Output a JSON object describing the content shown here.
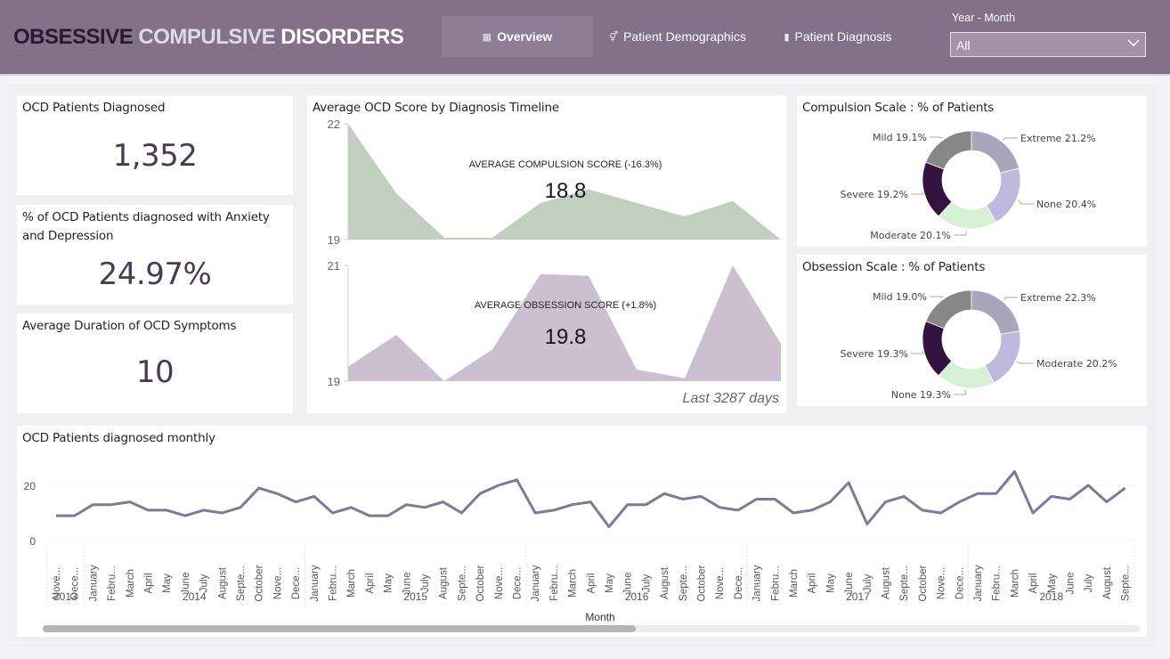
{
  "header": {
    "title_part1": "OBSESSIVE",
    "title_part2": "COMPULSIVE",
    "title_part3": "DISORDERS",
    "nav": [
      {
        "label": "Overview",
        "icon": "table-icon",
        "active": true
      },
      {
        "label": "Patient Demographics",
        "icon": "gender-icon",
        "active": false
      },
      {
        "label": "Patient Diagnosis",
        "icon": "test-tube-icon",
        "active": false
      }
    ],
    "filter": {
      "label": "Year - Month",
      "value": "All"
    }
  },
  "kpis": [
    {
      "title": "OCD Patients Diagnosed",
      "value": "1,352"
    },
    {
      "title": "% of OCD Patients diagnosed with Anxiety and Depression",
      "value": "24.97%"
    },
    {
      "title": "Average Duration of OCD Symptoms",
      "value": "10"
    }
  ],
  "timeline": {
    "title": "Average OCD Score by Diagnosis Timeline",
    "footer": "Last 3287 days",
    "compulsion": {
      "label": "AVERAGE COMPULSION SCORE (-16.3%)",
      "value": "18.8"
    },
    "obsession": {
      "label": "AVERAGE OBSESSION SCORE (+1.8%)",
      "value": "19.8"
    }
  },
  "donuts": {
    "compulsion_title": "Compulsion Scale : % of Patients",
    "obsession_title": "Obsession Scale : % of Patients"
  },
  "monthly": {
    "title": "OCD Patients diagnosed monthly",
    "xlabel": "Month",
    "scroll_position": 0.54
  },
  "colors": {
    "header_bg": "#837089",
    "compulsion_area": "#c1cfbe",
    "obsession_area": "#cbc0cf",
    "line": "#7a7b9a",
    "extreme": "#a9a6bb",
    "none_or_moderate": "#bfb9dd",
    "light_green": "#d5f0d3",
    "severe": "#351340",
    "mild": "#878787"
  },
  "chart_data": [
    {
      "type": "area",
      "title": "Average Compulsion Score",
      "ylim": [
        19,
        22
      ],
      "yticks": [
        "22",
        "19"
      ],
      "values": [
        22.0,
        20.2,
        19.05,
        19.05,
        19.95,
        20.3,
        19.95,
        19.6,
        20.0,
        19.0
      ]
    },
    {
      "type": "area",
      "title": "Average Obsession Score",
      "ylim": [
        19,
        21
      ],
      "yticks": [
        "21",
        "19"
      ],
      "values": [
        19.25,
        19.8,
        19.0,
        19.55,
        20.85,
        20.82,
        19.2,
        19.05,
        21.0,
        19.65
      ]
    },
    {
      "type": "pie",
      "title": "Compulsion Scale : % of Patients",
      "slices": [
        {
          "label": "Extreme",
          "value": 21.2,
          "text": "Extreme 21.2%",
          "color": "#a9a6bb"
        },
        {
          "label": "None",
          "value": 20.4,
          "text": "None 20.4%",
          "color": "#bfb9dd"
        },
        {
          "label": "Moderate",
          "value": 20.1,
          "text": "Moderate 20.1%",
          "color": "#d5f0d3"
        },
        {
          "label": "Severe",
          "value": 19.2,
          "text": "Severe 19.2%",
          "color": "#351340"
        },
        {
          "label": "Mild",
          "value": 19.1,
          "text": "Mild 19.1%",
          "color": "#878787"
        }
      ]
    },
    {
      "type": "pie",
      "title": "Obsession Scale : % of Patients",
      "slices": [
        {
          "label": "Extreme",
          "value": 22.3,
          "text": "Extreme 22.3%",
          "color": "#a9a6bb"
        },
        {
          "label": "Moderate",
          "value": 20.2,
          "text": "Moderate 20.2%",
          "color": "#bfb9dd"
        },
        {
          "label": "None",
          "value": 19.3,
          "text": "None 19.3%",
          "color": "#d5f0d3"
        },
        {
          "label": "Severe",
          "value": 19.3,
          "text": "Severe 19.3%",
          "color": "#351340"
        },
        {
          "label": "Mild",
          "value": 19.0,
          "text": "Mild 19.0%",
          "color": "#878787"
        }
      ]
    },
    {
      "type": "line",
      "title": "OCD Patients diagnosed monthly",
      "xlabel": "Month",
      "ylim": [
        0,
        25
      ],
      "yticks": [
        "20",
        "0"
      ],
      "grid": true,
      "x": [
        "Nove...",
        "Dece...",
        "January",
        "Febru...",
        "March",
        "April",
        "May",
        "June",
        "July",
        "August",
        "Septe...",
        "October",
        "Nove...",
        "Dece...",
        "January",
        "Febru...",
        "March",
        "April",
        "May",
        "June",
        "July",
        "August",
        "Septe...",
        "October",
        "Nove...",
        "Dece...",
        "January",
        "Febru...",
        "March",
        "April",
        "May",
        "June",
        "July",
        "August",
        "Septe...",
        "October",
        "Nove...",
        "Dece...",
        "January",
        "Febru...",
        "March",
        "April",
        "May",
        "June",
        "July",
        "August",
        "Septe...",
        "October",
        "Nove...",
        "Dece...",
        "January",
        "Febru...",
        "March",
        "April",
        "May",
        "June",
        "July",
        "August",
        "Septe..."
      ],
      "years": [
        {
          "label": "2013",
          "count": 2
        },
        {
          "label": "2014",
          "count": 12
        },
        {
          "label": "2015",
          "count": 12
        },
        {
          "label": "2016",
          "count": 12
        },
        {
          "label": "2017",
          "count": 12
        },
        {
          "label": "2018",
          "count": 9
        }
      ],
      "values": [
        9,
        9,
        13,
        13,
        14,
        11,
        11,
        9,
        11,
        10,
        12,
        19,
        17,
        14,
        16,
        10,
        12,
        9,
        9,
        13,
        12,
        14,
        10,
        17,
        20,
        22,
        10,
        11,
        13,
        14,
        5,
        13,
        13,
        17,
        15,
        16,
        12,
        11,
        15,
        15,
        10,
        11,
        14,
        21,
        6,
        14,
        16,
        11,
        10,
        14,
        17,
        17,
        25,
        10,
        16,
        15,
        20,
        14,
        19
      ]
    }
  ]
}
